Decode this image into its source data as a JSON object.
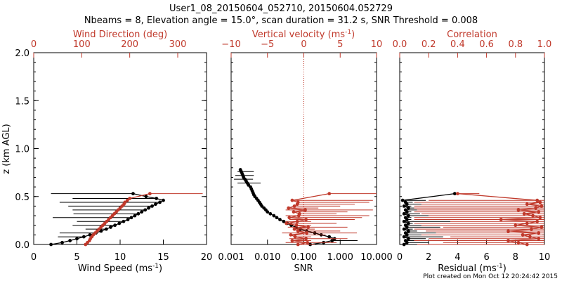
{
  "title": {
    "line1": "User1_08_20150604_052710, 20150604.052729",
    "line2": "Nbeams = 8, Elevation angle = 15.0°, scan duration = 31.2 s, SNR Threshold = 0.008"
  },
  "footer": "Plot created on Mon Oct 12 20:24:42 2015",
  "colors": {
    "black": "#000000",
    "red": "#c0392b"
  },
  "chart_data": [
    {
      "type": "line",
      "panel": "wind",
      "ylabel": "z (km AGL)",
      "ylim": [
        0,
        2.0
      ],
      "yticks": [
        "0.0",
        "0.5",
        "1.0",
        "1.5",
        "2.0"
      ],
      "xlabel": "Wind Speed (ms",
      "xlabel_sup": "-1",
      "xlabel_close": ")",
      "xlim": [
        0,
        20
      ],
      "xticks": [
        "0",
        "5",
        "10",
        "15",
        "20"
      ],
      "top_label": "Wind Direction (deg)",
      "top_xlim": [
        0,
        360
      ],
      "top_ticks": [
        "0",
        "100",
        "200",
        "300"
      ],
      "series": [
        {
          "name": "Wind Speed",
          "color": "#000000",
          "z": [
            0.0,
            0.02,
            0.04,
            0.06,
            0.08,
            0.1,
            0.12,
            0.14,
            0.16,
            0.18,
            0.2,
            0.22,
            0.24,
            0.26,
            0.28,
            0.3,
            0.32,
            0.34,
            0.36,
            0.38,
            0.4,
            0.42,
            0.44,
            0.46,
            0.48,
            0.5,
            0.53
          ],
          "center": [
            2.0,
            3.3,
            4.2,
            5.0,
            5.8,
            6.5,
            7.2,
            7.8,
            8.4,
            8.9,
            9.4,
            9.9,
            10.4,
            10.9,
            11.3,
            11.7,
            12.1,
            12.5,
            12.9,
            13.3,
            13.7,
            14.1,
            14.6,
            15.0,
            14.2,
            13.0,
            11.5
          ],
          "lo": [
            2.0,
            3.3,
            4.2,
            5.0,
            2.8,
            6.5,
            3.0,
            7.8,
            6.0,
            8.9,
            4.5,
            9.9,
            5.0,
            10.9,
            2.2,
            11.7,
            4.6,
            12.5,
            4.5,
            13.3,
            4.0,
            14.1,
            3.0,
            15.0,
            4.5,
            13.0,
            2.0
          ],
          "hi": [
            2.0,
            3.3,
            4.2,
            5.0,
            5.8,
            6.5,
            7.2,
            7.8,
            8.4,
            8.9,
            9.4,
            9.9,
            10.4,
            10.9,
            11.3,
            11.7,
            12.1,
            12.5,
            12.9,
            13.3,
            13.7,
            14.1,
            14.6,
            15.0,
            14.2,
            13.0,
            11.5
          ]
        },
        {
          "name": "Wind Direction",
          "color": "#c0392b",
          "axis": "top",
          "z": [
            0.0,
            0.02,
            0.04,
            0.06,
            0.08,
            0.1,
            0.12,
            0.14,
            0.16,
            0.18,
            0.2,
            0.22,
            0.24,
            0.26,
            0.28,
            0.3,
            0.32,
            0.34,
            0.36,
            0.38,
            0.4,
            0.42,
            0.44,
            0.46,
            0.48,
            0.53
          ],
          "center": [
            108,
            112,
            116,
            118,
            121,
            124,
            128,
            132,
            136,
            140,
            144,
            148,
            152,
            156,
            160,
            164,
            168,
            172,
            176,
            180,
            184,
            188,
            190,
            195,
            200,
            242
          ],
          "lo": [
            108,
            112,
            116,
            118,
            121,
            124,
            128,
            132,
            136,
            140,
            144,
            148,
            152,
            156,
            160,
            164,
            168,
            172,
            176,
            180,
            184,
            188,
            190,
            195,
            200,
            242
          ],
          "hi": [
            108,
            112,
            116,
            118,
            121,
            124,
            128,
            132,
            136,
            140,
            144,
            148,
            152,
            156,
            160,
            164,
            168,
            172,
            176,
            180,
            184,
            188,
            190,
            195,
            200,
            352
          ]
        }
      ]
    },
    {
      "type": "line",
      "panel": "snr",
      "xlabel": "SNR",
      "xscale": "log",
      "xlim": [
        0.001,
        10
      ],
      "xticks": [
        "0.001",
        "0.010",
        "0.100",
        "1.000",
        "10.000"
      ],
      "top_label": "Vertical velocity (ms",
      "top_label_sup": "-1",
      "top_label_close": ")",
      "top_xlim": [
        -10,
        10
      ],
      "top_ticks": [
        "−10",
        "−5",
        "0",
        "5",
        "10"
      ],
      "reference_line": 0,
      "series": [
        {
          "name": "SNR",
          "color": "#000000",
          "z": [
            0.0,
            0.02,
            0.04,
            0.06,
            0.08,
            0.1,
            0.12,
            0.14,
            0.16,
            0.18,
            0.2,
            0.22,
            0.24,
            0.26,
            0.28,
            0.3,
            0.32,
            0.34,
            0.36,
            0.38,
            0.4,
            0.42,
            0.44,
            0.46,
            0.48,
            0.5,
            0.52,
            0.54,
            0.56,
            0.58,
            0.6,
            0.62,
            0.64,
            0.66,
            0.68,
            0.7,
            0.72,
            0.74,
            0.76,
            0.78
          ],
          "center": [
            0.15,
            0.35,
            0.6,
            0.7,
            0.5,
            0.3,
            0.2,
            0.12,
            0.08,
            0.06,
            0.045,
            0.035,
            0.028,
            0.022,
            0.018,
            0.015,
            0.012,
            0.01,
            0.009,
            0.008,
            0.007,
            0.0065,
            0.006,
            0.0055,
            0.005,
            0.0045,
            0.0042,
            0.004,
            0.0038,
            0.0036,
            0.0034,
            0.003,
            0.0028,
            0.0026,
            0.0024,
            0.0022,
            0.0021,
            0.002,
            0.0019,
            0.0018
          ],
          "lo": [
            0.15,
            0.35,
            0.6,
            0.7,
            0.5,
            0.3,
            0.2,
            0.12,
            0.08,
            0.06,
            0.045,
            0.035,
            0.028,
            0.022,
            0.018,
            0.015,
            0.012,
            0.01,
            0.009,
            0.008,
            0.007,
            0.0065,
            0.006,
            0.0055,
            0.005,
            0.0045,
            0.0042,
            0.004,
            0.0038,
            0.0036,
            0.0034,
            0.003,
            0.0015,
            0.0026,
            0.0012,
            0.0022,
            0.0013,
            0.002,
            0.0015,
            0.0018
          ],
          "hi": [
            6.0,
            0.35,
            3.0,
            0.7,
            0.5,
            0.3,
            0.2,
            0.12,
            0.08,
            0.06,
            0.045,
            0.035,
            0.028,
            0.022,
            0.018,
            0.015,
            0.012,
            0.01,
            0.009,
            0.008,
            0.007,
            0.0065,
            0.006,
            0.0055,
            0.005,
            0.0045,
            0.0042,
            0.004,
            0.0038,
            0.0036,
            0.0034,
            0.003,
            0.0065,
            0.0026,
            0.004,
            0.0022,
            0.0042,
            0.002,
            0.0042,
            0.0018
          ]
        },
        {
          "name": "Vertical velocity",
          "color": "#c0392b",
          "axis": "top",
          "z": [
            0.0,
            0.02,
            0.04,
            0.06,
            0.08,
            0.1,
            0.12,
            0.14,
            0.16,
            0.18,
            0.2,
            0.22,
            0.24,
            0.26,
            0.28,
            0.3,
            0.32,
            0.34,
            0.36,
            0.38,
            0.4,
            0.42,
            0.44,
            0.46,
            0.53
          ],
          "center": [
            -0.8,
            0.5,
            -1.6,
            0.3,
            -1.2,
            -1.8,
            0.4,
            -0.8,
            -1.3,
            0.6,
            -1.0,
            -2.4,
            -0.9,
            0.3,
            -2.0,
            -0.7,
            -0.6,
            -1.4,
            0.2,
            -2.1,
            -1.3,
            -0.9,
            -0.8,
            -1.6,
            3.5
          ],
          "lo": [
            -0.8,
            -2.5,
            -1.6,
            -2.0,
            -1.2,
            -1.8,
            -3.0,
            -0.8,
            -1.3,
            -2.2,
            -1.0,
            -2.4,
            -2.5,
            -2.0,
            -2.0,
            -2.5,
            -0.6,
            -1.4,
            -2.5,
            -2.1,
            -1.3,
            -0.9,
            -0.8,
            -1.6,
            3.5
          ],
          "hi": [
            1.5,
            4.5,
            1.0,
            6.0,
            1.0,
            3.0,
            7.3,
            5.0,
            1.5,
            6.0,
            1.0,
            4.5,
            1.0,
            7.0,
            8.0,
            9.0,
            4.5,
            6.0,
            9.5,
            2.0,
            5.0,
            7.0,
            9.0,
            9.5,
            10.0
          ]
        }
      ]
    },
    {
      "type": "line",
      "panel": "residual",
      "xlabel": "Residual (ms",
      "xlabel_sup": "-1",
      "xlabel_close": ")",
      "xlim": [
        0,
        10
      ],
      "xticks": [
        "0",
        "2",
        "4",
        "6",
        "8",
        "10"
      ],
      "top_label": "Correlation",
      "top_xlim": [
        0,
        1.0
      ],
      "top_ticks": [
        "0.0",
        "0.2",
        "0.4",
        "0.6",
        "0.8",
        "1.0"
      ],
      "series": [
        {
          "name": "Residual",
          "color": "#000000",
          "z": [
            0.0,
            0.02,
            0.04,
            0.06,
            0.08,
            0.1,
            0.12,
            0.14,
            0.16,
            0.18,
            0.2,
            0.22,
            0.24,
            0.26,
            0.28,
            0.3,
            0.32,
            0.34,
            0.36,
            0.38,
            0.4,
            0.42,
            0.44,
            0.46,
            0.53
          ],
          "center": [
            0.3,
            0.5,
            0.4,
            0.6,
            0.3,
            0.5,
            0.4,
            0.6,
            0.3,
            0.5,
            0.4,
            0.6,
            0.3,
            0.5,
            0.4,
            0.6,
            0.3,
            0.5,
            0.4,
            0.6,
            0.3,
            0.5,
            0.4,
            0.2,
            3.8
          ],
          "lo": [
            0.3,
            0.5,
            0.4,
            0.6,
            0.3,
            0.5,
            0.4,
            0.6,
            0.3,
            0.5,
            0.4,
            0.6,
            0.3,
            0.5,
            0.4,
            0.6,
            0.3,
            0.5,
            0.4,
            0.6,
            0.3,
            0.5,
            0.4,
            0.2,
            3.8
          ],
          "hi": [
            1.0,
            2.0,
            1.0,
            1.8,
            3.0,
            1.5,
            2.5,
            1.2,
            0.9,
            2.8,
            1.5,
            0.9,
            3.5,
            0.8,
            0.8,
            2.0,
            1.4,
            0.8,
            1.2,
            1.0,
            0.8,
            1.5,
            0.9,
            1.8,
            3.8
          ]
        },
        {
          "name": "Correlation",
          "color": "#c0392b",
          "axis": "top",
          "z": [
            0.0,
            0.02,
            0.04,
            0.06,
            0.08,
            0.1,
            0.12,
            0.14,
            0.16,
            0.18,
            0.2,
            0.22,
            0.24,
            0.26,
            0.28,
            0.3,
            0.32,
            0.34,
            0.36,
            0.38,
            0.4,
            0.42,
            0.44,
            0.46,
            0.53
          ],
          "center": [
            0.88,
            0.82,
            0.75,
            0.96,
            0.9,
            0.85,
            0.96,
            0.75,
            0.91,
            0.98,
            0.8,
            0.88,
            0.95,
            0.7,
            0.97,
            0.92,
            0.86,
            0.96,
            0.82,
            0.94,
            0.98,
            0.88,
            0.97,
            0.95,
            0.4
          ],
          "lo": [
            0.12,
            0.3,
            0.1,
            0.2,
            0.35,
            0.15,
            0.25,
            0.18,
            0.1,
            0.3,
            0.15,
            0.1,
            0.35,
            0.1,
            0.1,
            0.2,
            0.15,
            0.1,
            0.12,
            0.1,
            0.1,
            0.15,
            0.1,
            0.2,
            0.4
          ],
          "hi": [
            1.0,
            1.0,
            1.0,
            1.0,
            1.0,
            1.0,
            1.0,
            1.0,
            1.0,
            1.0,
            1.0,
            1.0,
            1.0,
            1.0,
            1.0,
            1.0,
            1.0,
            1.0,
            1.0,
            1.0,
            1.0,
            1.0,
            1.0,
            1.0,
            0.55
          ]
        }
      ]
    }
  ]
}
